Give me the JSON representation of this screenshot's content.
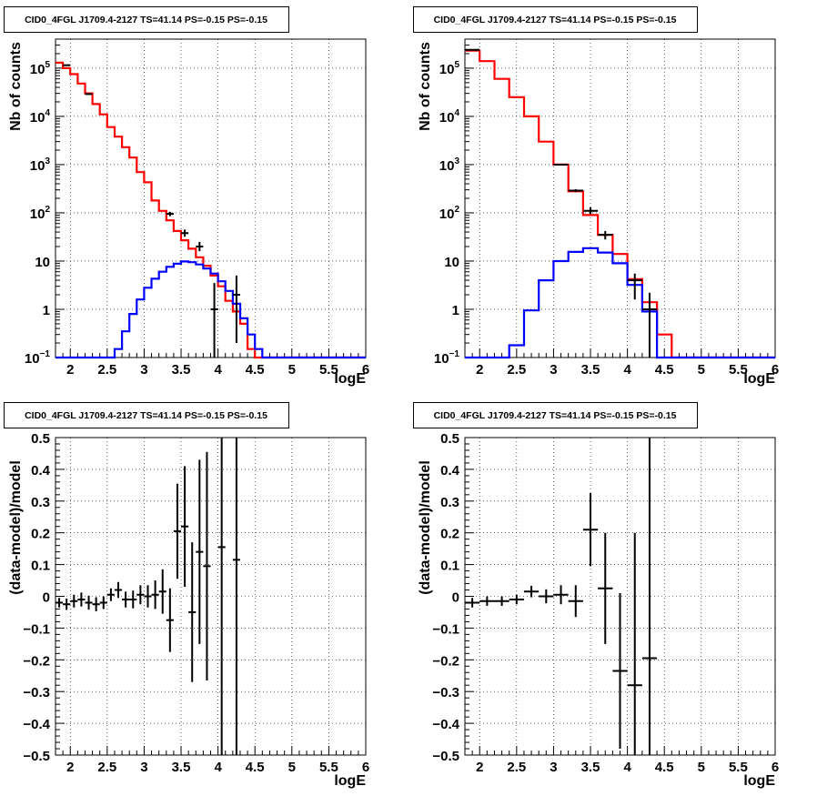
{
  "chart_data": [
    {
      "type": "step-histogram",
      "title": "CID0_4FGL J1709.4-2127 TS=41.14 PS=-0.15 PS=-0.15",
      "xlabel": "logE",
      "ylabel": "Nb of counts",
      "xlim": [
        1.8,
        6.0
      ],
      "ylim": [
        0.1,
        400000
      ],
      "yscale": "log",
      "grid": true,
      "xticks": [
        "2",
        "2.5",
        "3",
        "3.5",
        "4",
        "4.5",
        "5",
        "5.5",
        "6"
      ],
      "yticks": [
        {
          "label": "10",
          "sup": "−1"
        },
        {
          "label": "1",
          "sup": ""
        },
        {
          "label": "10",
          "sup": ""
        },
        {
          "label": "10",
          "sup": "2"
        },
        {
          "label": "10",
          "sup": "3"
        },
        {
          "label": "10",
          "sup": "4"
        },
        {
          "label": "10",
          "sup": "5"
        }
      ],
      "bin_edges": [
        1.8,
        1.9,
        2.0,
        2.1,
        2.2,
        2.3,
        2.4,
        2.5,
        2.6,
        2.7,
        2.8,
        2.9,
        3.0,
        3.1,
        3.2,
        3.3,
        3.4,
        3.5,
        3.6,
        3.7,
        3.8,
        3.9,
        4.0,
        4.1,
        4.2,
        4.3,
        4.4,
        4.5,
        4.6,
        4.7,
        4.8,
        4.9,
        5.0,
        5.1,
        5.2,
        5.3,
        5.4,
        5.5,
        5.6,
        5.7,
        5.8,
        5.9,
        6.0
      ],
      "series": [
        {
          "style": "step",
          "color": "#ff0000",
          "values": [
            130000,
            100000,
            75000,
            48000,
            30000,
            18000,
            11000,
            6000,
            3800,
            2300,
            1400,
            700,
            430,
            180,
            110,
            70,
            42,
            27,
            18,
            12,
            8,
            5,
            3.0,
            1.5,
            0.9,
            0.5,
            0.15,
            0.1,
            0.1,
            0.1,
            0.1,
            0.1,
            0.1,
            0.1,
            0.1,
            0.1,
            0.1,
            0.1,
            0.1,
            0.1,
            0.1,
            0.1
          ]
        },
        {
          "style": "step",
          "color": "#0000ff",
          "values": [
            0.1,
            0.1,
            0.1,
            0.1,
            0.1,
            0.1,
            0.1,
            0.1,
            0.15,
            0.35,
            0.8,
            1.6,
            2.8,
            4.3,
            6.0,
            7.6,
            8.8,
            9.8,
            9.5,
            8.5,
            7.0,
            5.5,
            3.8,
            2.4,
            1.3,
            0.65,
            0.3,
            0.15,
            0.1,
            0.1,
            0.1,
            0.1,
            0.1,
            0.1,
            0.1,
            0.1,
            0.1,
            0.1,
            0.1,
            0.1,
            0.1,
            0.1
          ]
        },
        {
          "style": "points",
          "color": "#000000",
          "points": [
            [
              1.95,
              115000,
              115000,
              115000
            ],
            [
              2.25,
              29000,
              29000,
              29000
            ],
            [
              3.35,
              95,
              105,
              85
            ],
            [
              3.55,
              38,
              45,
              32
            ],
            [
              3.75,
              20,
              25,
              16
            ],
            [
              3.95,
              1.0,
              3.5,
              0.1
            ],
            [
              4.25,
              2.0,
              5.0,
              0.2
            ]
          ]
        }
      ]
    },
    {
      "type": "step-histogram",
      "title": "CID0_4FGL J1709.4-2127 TS=41.14 PS=-0.15 PS=-0.15",
      "xlabel": "logE",
      "ylabel": "Nb of counts",
      "xlim": [
        1.8,
        6.0
      ],
      "ylim": [
        0.1,
        400000
      ],
      "yscale": "log",
      "grid": true,
      "xticks": [
        "2",
        "2.5",
        "3",
        "3.5",
        "4",
        "4.5",
        "5",
        "5.5",
        "6"
      ],
      "yticks": [
        {
          "label": "10",
          "sup": "−1"
        },
        {
          "label": "1",
          "sup": ""
        },
        {
          "label": "10",
          "sup": ""
        },
        {
          "label": "10",
          "sup": "2"
        },
        {
          "label": "10",
          "sup": "3"
        },
        {
          "label": "10",
          "sup": "4"
        },
        {
          "label": "10",
          "sup": "5"
        }
      ],
      "bin_edges": [
        1.8,
        2.0,
        2.2,
        2.4,
        2.6,
        2.8,
        3.0,
        3.2,
        3.4,
        3.6,
        3.8,
        4.0,
        4.2,
        4.4,
        4.6,
        4.8,
        5.0,
        5.2,
        5.4,
        5.6,
        5.8,
        6.0
      ],
      "series": [
        {
          "style": "step",
          "color": "#ff0000",
          "values": [
            230000,
            140000,
            60000,
            25000,
            10000,
            3000,
            1000,
            280,
            90,
            35,
            14,
            4.2,
            1.4,
            0.3,
            0.1,
            0.1,
            0.1,
            0.1,
            0.1,
            0.1,
            0.1
          ]
        },
        {
          "style": "step",
          "color": "#0000ff",
          "values": [
            0.1,
            0.1,
            0.1,
            0.18,
            0.95,
            4.0,
            10.0,
            15.5,
            18.5,
            15.0,
            9.0,
            3.2,
            0.9,
            0.1,
            0.1,
            0.1,
            0.1,
            0.1,
            0.1,
            0.1,
            0.1
          ]
        },
        {
          "style": "points",
          "color": "#000000",
          "points": [
            [
              1.9,
              240000,
              240000,
              240000
            ],
            [
              3.1,
              1000,
              1000,
              1000
            ],
            [
              3.3,
              290,
              310,
              270
            ],
            [
              3.5,
              110,
              130,
              95
            ],
            [
              3.7,
              35,
              42,
              28
            ],
            [
              4.1,
              4.0,
              5.5,
              1.6
            ],
            [
              4.3,
              1.0,
              2.2,
              0.1
            ]
          ]
        }
      ]
    },
    {
      "type": "error-points",
      "title": "CID0_4FGL J1709.4-2127 TS=41.14 PS=-0.15 PS=-0.15",
      "xlabel": "logE",
      "ylabel": "(data-model)/model",
      "xlim": [
        1.8,
        6.0
      ],
      "ylim": [
        -0.5,
        0.5
      ],
      "grid": true,
      "xticks": [
        "2",
        "2.5",
        "3",
        "3.5",
        "4",
        "4.5",
        "5",
        "5.5",
        "6"
      ],
      "yticks": [
        "−0.5",
        "−0.4",
        "−0.3",
        "−0.2",
        "−0.1",
        "0",
        "0.1",
        "0.2",
        "0.3",
        "0.4",
        "0.5"
      ],
      "bin_width": 0.1,
      "points": [
        [
          1.85,
          -0.02,
          0.015
        ],
        [
          1.95,
          -0.025,
          0.018
        ],
        [
          2.05,
          -0.015,
          0.02
        ],
        [
          2.15,
          -0.01,
          0.022
        ],
        [
          2.25,
          -0.02,
          0.022
        ],
        [
          2.35,
          -0.025,
          0.022
        ],
        [
          2.45,
          -0.02,
          0.02
        ],
        [
          2.55,
          0.005,
          0.02
        ],
        [
          2.65,
          0.02,
          0.025
        ],
        [
          2.75,
          -0.01,
          0.025
        ],
        [
          2.85,
          -0.01,
          0.028
        ],
        [
          2.95,
          0.005,
          0.03
        ],
        [
          3.05,
          0.0,
          0.035
        ],
        [
          3.15,
          0.005,
          0.045
        ],
        [
          3.25,
          0.015,
          0.07
        ],
        [
          3.35,
          -0.075,
          0.1
        ],
        [
          3.45,
          0.205,
          0.15
        ],
        [
          3.55,
          0.22,
          0.19
        ],
        [
          3.65,
          -0.05,
          0.22
        ],
        [
          3.75,
          0.14,
          0.29
        ],
        [
          3.85,
          0.095,
          0.36
        ],
        [
          4.05,
          0.155,
          0.7
        ],
        [
          4.25,
          0.115,
          0.7
        ]
      ]
    },
    {
      "type": "error-points",
      "title": "CID0_4FGL J1709.4-2127 TS=41.14 PS=-0.15 PS=-0.15",
      "xlabel": "logE",
      "ylabel": "(data-model)/model",
      "xlim": [
        1.8,
        6.0
      ],
      "ylim": [
        -0.5,
        0.5
      ],
      "grid": true,
      "xticks": [
        "2",
        "2.5",
        "3",
        "3.5",
        "4",
        "4.5",
        "5",
        "5.5",
        "6"
      ],
      "yticks": [
        "−0.5",
        "−0.4",
        "−0.3",
        "−0.2",
        "−0.1",
        "0",
        "0.1",
        "0.2",
        "0.3",
        "0.4",
        "0.5"
      ],
      "bin_width": 0.2,
      "points": [
        [
          1.9,
          -0.02,
          0.015
        ],
        [
          2.1,
          -0.015,
          0.015
        ],
        [
          2.3,
          -0.015,
          0.015
        ],
        [
          2.5,
          -0.01,
          0.015
        ],
        [
          2.7,
          0.015,
          0.018
        ],
        [
          2.9,
          0.0,
          0.022
        ],
        [
          3.1,
          0.005,
          0.03
        ],
        [
          3.3,
          -0.015,
          0.05
        ],
        [
          3.5,
          0.21,
          0.115
        ],
        [
          3.7,
          0.025,
          0.175
        ],
        [
          3.9,
          -0.235,
          0.245
        ],
        [
          4.1,
          -0.28,
          0.48
        ],
        [
          4.3,
          -0.195,
          0.7
        ]
      ]
    }
  ]
}
